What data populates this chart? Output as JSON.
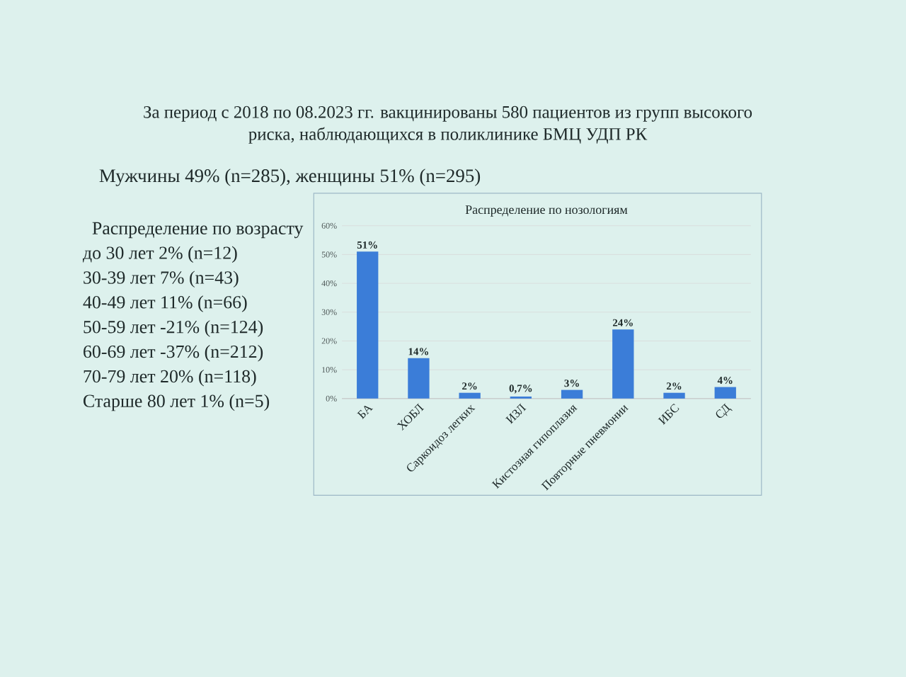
{
  "chart_data": {
    "type": "bar",
    "title": "За период с 2018 по 08.2023 гг. вакцинированы 580 пациентов из групп высокого риска, наблюдающихся в поликлинике БМЦ УДП РК",
    "subtitle": "Распределение по нозологиям",
    "categories": [
      "БА",
      "ХОБЛ",
      "Саркоидоз легких",
      "ИЗЛ",
      "Кистозная гипоплазия",
      "Повторные пневмонии",
      "ИБС",
      "СД"
    ],
    "values": [
      51,
      14,
      2,
      0.7,
      3,
      24,
      2,
      4
    ],
    "value_labels": [
      "51%",
      "14%",
      "2%",
      "0,7%",
      "3%",
      "24%",
      "2%",
      "4%"
    ],
    "color": "#3b7dd8",
    "ylim": [
      0,
      60
    ],
    "yticks": [
      {
        "value": 0,
        "label": "0%"
      },
      {
        "value": 10,
        "label": "10%"
      },
      {
        "value": 20,
        "label": "20%"
      },
      {
        "value": 30,
        "label": "30%"
      },
      {
        "value": 40,
        "label": "40%"
      },
      {
        "value": 50,
        "label": "50%"
      },
      {
        "value": 60,
        "label": "60%"
      }
    ],
    "grid": "y",
    "annotations": [
      "Мужчины 49% (n=285), женщины 51% (n=295)",
      "Распределение по возрасту",
      "до 30 лет 2% (n=12)",
      "30-39 лет 7% (n=43)",
      "40-49 лет 11% (n=66)",
      "50-59 лет -21% (n=124)",
      "60-69 лет -37% (n=212)",
      "70-79 лет 20% (n=118)",
      "Старше 80 лет 1% (n=5)"
    ]
  }
}
